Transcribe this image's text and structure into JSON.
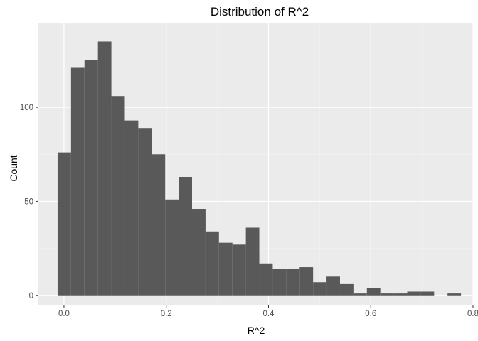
{
  "chart_data": {
    "type": "bar",
    "title": "Distribution of R^2",
    "xlabel": "R^2",
    "ylabel": "Count",
    "xlim": [
      -0.05,
      0.8
    ],
    "ylim": [
      -5,
      145
    ],
    "bin_width": 0.0263,
    "bins": [
      {
        "x0": -0.0125,
        "x1": 0.0138,
        "count": 76
      },
      {
        "x0": 0.0138,
        "x1": 0.0401,
        "count": 121
      },
      {
        "x0": 0.0401,
        "x1": 0.0664,
        "count": 125
      },
      {
        "x0": 0.0664,
        "x1": 0.0927,
        "count": 135
      },
      {
        "x0": 0.0927,
        "x1": 0.119,
        "count": 106
      },
      {
        "x0": 0.119,
        "x1": 0.1453,
        "count": 93
      },
      {
        "x0": 0.1453,
        "x1": 0.1716,
        "count": 89
      },
      {
        "x0": 0.1716,
        "x1": 0.1979,
        "count": 75
      },
      {
        "x0": 0.1979,
        "x1": 0.2242,
        "count": 51
      },
      {
        "x0": 0.2242,
        "x1": 0.2505,
        "count": 63
      },
      {
        "x0": 0.2505,
        "x1": 0.2768,
        "count": 46
      },
      {
        "x0": 0.2768,
        "x1": 0.3031,
        "count": 34
      },
      {
        "x0": 0.3031,
        "x1": 0.3294,
        "count": 28
      },
      {
        "x0": 0.3294,
        "x1": 0.3557,
        "count": 27
      },
      {
        "x0": 0.3557,
        "x1": 0.382,
        "count": 36
      },
      {
        "x0": 0.382,
        "x1": 0.4083,
        "count": 17
      },
      {
        "x0": 0.4083,
        "x1": 0.4346,
        "count": 14
      },
      {
        "x0": 0.4346,
        "x1": 0.4609,
        "count": 14
      },
      {
        "x0": 0.4609,
        "x1": 0.4872,
        "count": 15
      },
      {
        "x0": 0.4872,
        "x1": 0.5135,
        "count": 7
      },
      {
        "x0": 0.5135,
        "x1": 0.5398,
        "count": 10
      },
      {
        "x0": 0.5398,
        "x1": 0.5661,
        "count": 6
      },
      {
        "x0": 0.5661,
        "x1": 0.5924,
        "count": 1
      },
      {
        "x0": 0.5924,
        "x1": 0.6187,
        "count": 4
      },
      {
        "x0": 0.6187,
        "x1": 0.645,
        "count": 1
      },
      {
        "x0": 0.645,
        "x1": 0.6713,
        "count": 1
      },
      {
        "x0": 0.6713,
        "x1": 0.6976,
        "count": 2
      },
      {
        "x0": 0.6976,
        "x1": 0.7239,
        "count": 2
      },
      {
        "x0": 0.7239,
        "x1": 0.7502,
        "count": 0
      },
      {
        "x0": 0.7502,
        "x1": 0.7765,
        "count": 1
      }
    ],
    "x_ticks": [
      {
        "value": 0.0,
        "label": "0.0"
      },
      {
        "value": 0.2,
        "label": "0.2"
      },
      {
        "value": 0.4,
        "label": "0.4"
      },
      {
        "value": 0.6,
        "label": "0.6"
      },
      {
        "value": 0.8,
        "label": "0.8"
      }
    ],
    "y_ticks": [
      {
        "value": 0,
        "label": "0"
      },
      {
        "value": 50,
        "label": "50"
      },
      {
        "value": 100,
        "label": "100"
      }
    ],
    "grid": true,
    "legend": "none",
    "colors": {
      "panel_background": "#ebebeb",
      "grid_major": "#ffffff",
      "grid_minor": "#f2f2f2",
      "bar_fill": "#595959",
      "tick": "#333333"
    }
  }
}
